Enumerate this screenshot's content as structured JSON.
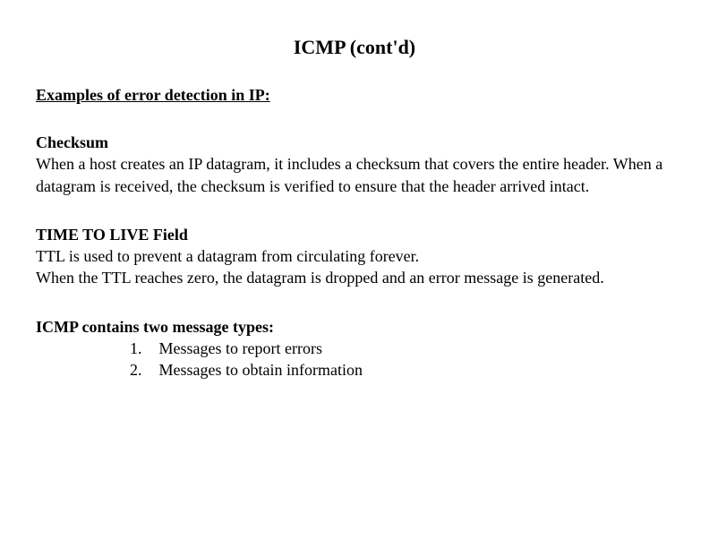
{
  "title": "ICMP (cont'd)",
  "sectionHeading": "Examples of error detection in IP:",
  "checksum": {
    "heading": "Checksum",
    "body": "When a host creates an IP datagram, it includes a checksum that covers the entire header. When a datagram is received, the checksum is verified to ensure that the header arrived intact."
  },
  "ttl": {
    "heading": "TIME TO LIVE Field",
    "line1": "TTL is used to prevent a datagram from circulating forever.",
    "line2": "When the TTL reaches zero, the datagram is dropped and an error message is generated."
  },
  "msgTypes": {
    "heading": "ICMP contains two message types:",
    "items": {
      "n1": "1.",
      "t1": "Messages to report errors",
      "n2": "2.",
      "t2": "Messages to obtain information"
    }
  }
}
